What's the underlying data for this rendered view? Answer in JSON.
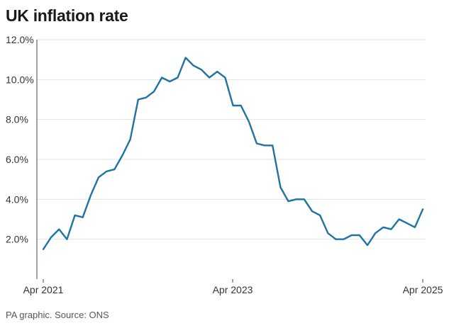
{
  "title": "UK inflation rate",
  "footer": "PA graphic. Source: ONS",
  "colors": {
    "line": "#1f73a0",
    "grid": "#e3e3e3",
    "axis": "#444444"
  },
  "chart_data": {
    "type": "line",
    "title": "UK inflation rate",
    "xlabel": "",
    "ylabel": "",
    "x_ticks": [
      "Apr 2021",
      "Apr 2023",
      "Apr 2025"
    ],
    "y_ticks": [
      "2.0%",
      "4.0%",
      "6.0%",
      "8.0%",
      "10.0%",
      "12.0%"
    ],
    "ylim": [
      0,
      12
    ],
    "grid": "horizontal",
    "x_start": "Apr 2021",
    "x_end": "Apr 2025",
    "series": [
      {
        "values": [
          1.5,
          2.1,
          2.5,
          2.0,
          3.2,
          3.1,
          4.2,
          5.1,
          5.4,
          5.5,
          6.2,
          7.0,
          9.0,
          9.1,
          9.4,
          10.1,
          9.9,
          10.1,
          11.1,
          10.7,
          10.5,
          10.1,
          10.4,
          10.1,
          8.7,
          8.7,
          7.9,
          6.8,
          6.7,
          6.7,
          4.6,
          3.9,
          4.0,
          4.0,
          3.4,
          3.2,
          2.3,
          2.0,
          2.0,
          2.2,
          2.2,
          1.7,
          2.3,
          2.6,
          2.5,
          3.0,
          2.8,
          2.6,
          3.5
        ]
      }
    ]
  }
}
